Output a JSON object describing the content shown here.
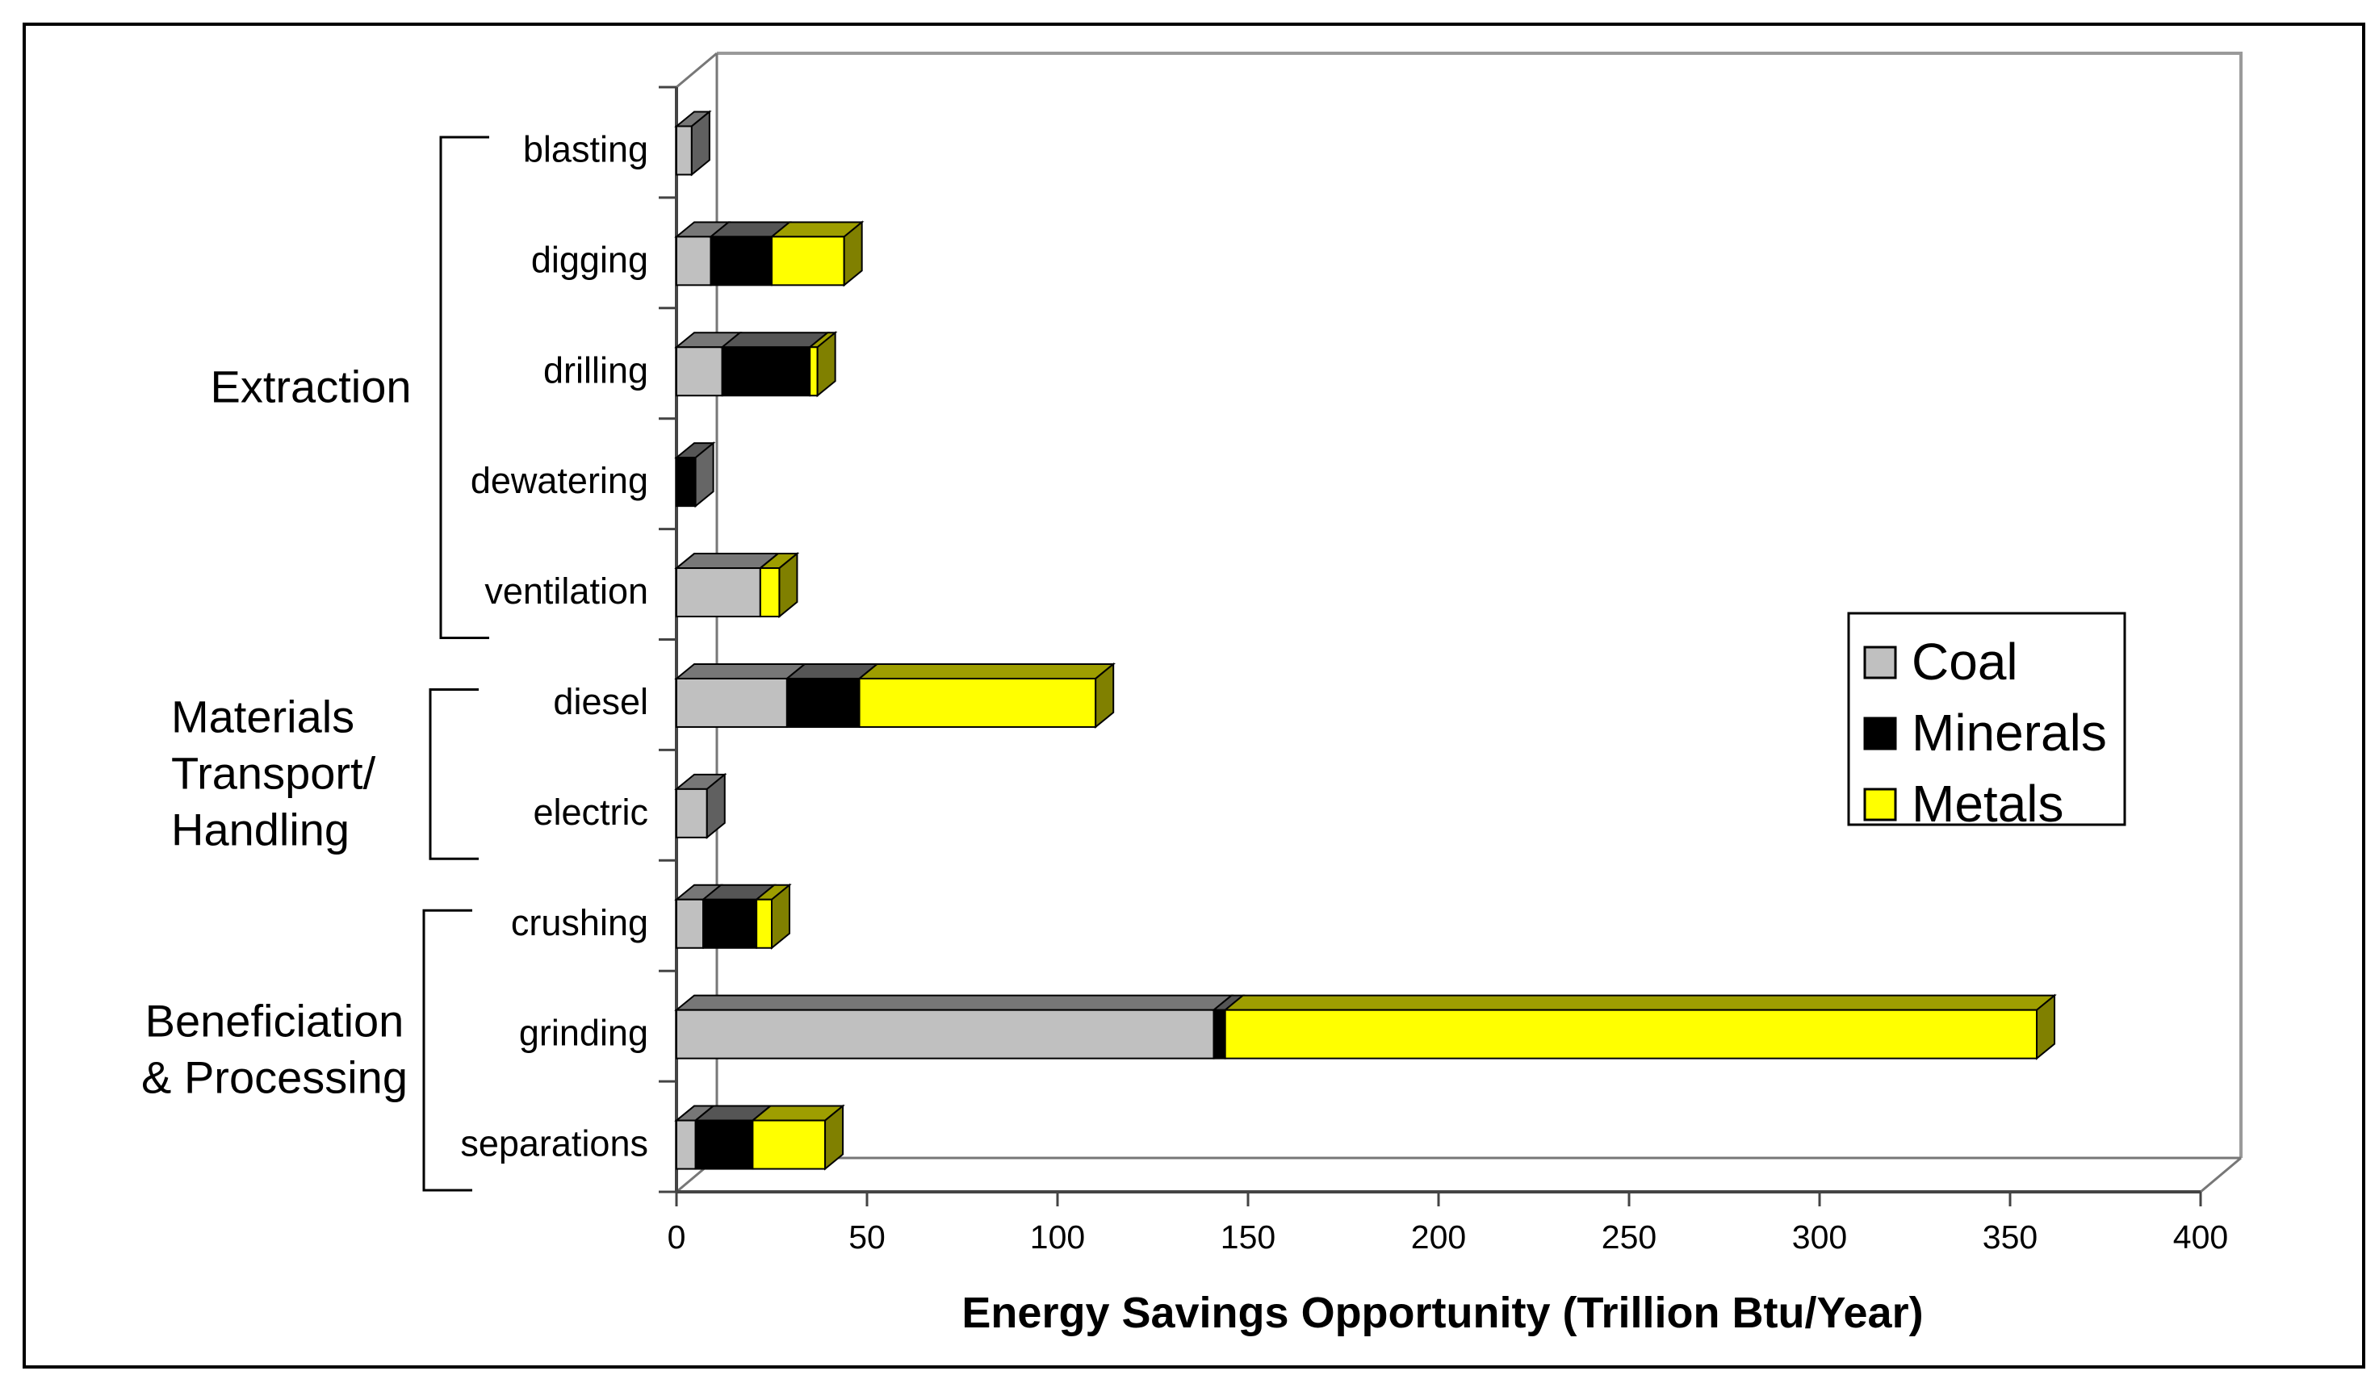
{
  "chart_data": {
    "type": "bar",
    "orientation": "horizontal",
    "stacked": true,
    "style": "3d",
    "xlabel": "Energy Savings Opportunity (Trillion Btu/Year)",
    "ylabel": "",
    "xlim": [
      0,
      400
    ],
    "x_ticks": [
      "0",
      "50",
      "100",
      "150",
      "200",
      "250",
      "300",
      "350",
      "400"
    ],
    "legend_position": "right",
    "categories": [
      "blasting",
      "digging",
      "drilling",
      "dewatering",
      "ventilation",
      "diesel",
      "electric",
      "crushing",
      "grinding",
      "separations"
    ],
    "series": [
      {
        "name": "Coal",
        "color": "#c0c0c0",
        "values": [
          4,
          9,
          12,
          0,
          22,
          29,
          8,
          7,
          141,
          5
        ]
      },
      {
        "name": "Minerals",
        "color": "#000000",
        "values": [
          0,
          16,
          23,
          5,
          0,
          19,
          0,
          14,
          3,
          15
        ]
      },
      {
        "name": "Metals",
        "color": "#ffff00",
        "values": [
          0,
          19,
          2,
          0,
          5,
          62,
          0,
          4,
          213,
          19
        ]
      }
    ],
    "groups": [
      {
        "label_lines": [
          "Extraction"
        ],
        "categories": [
          "blasting",
          "digging",
          "drilling",
          "dewatering",
          "ventilation"
        ]
      },
      {
        "label_lines": [
          "Materials",
          "Transport/",
          "Handling"
        ],
        "categories": [
          "diesel",
          "electric"
        ]
      },
      {
        "label_lines": [
          "Beneficiation",
          "& Processing"
        ],
        "categories": [
          "crushing",
          "grinding",
          "separations"
        ]
      }
    ]
  }
}
